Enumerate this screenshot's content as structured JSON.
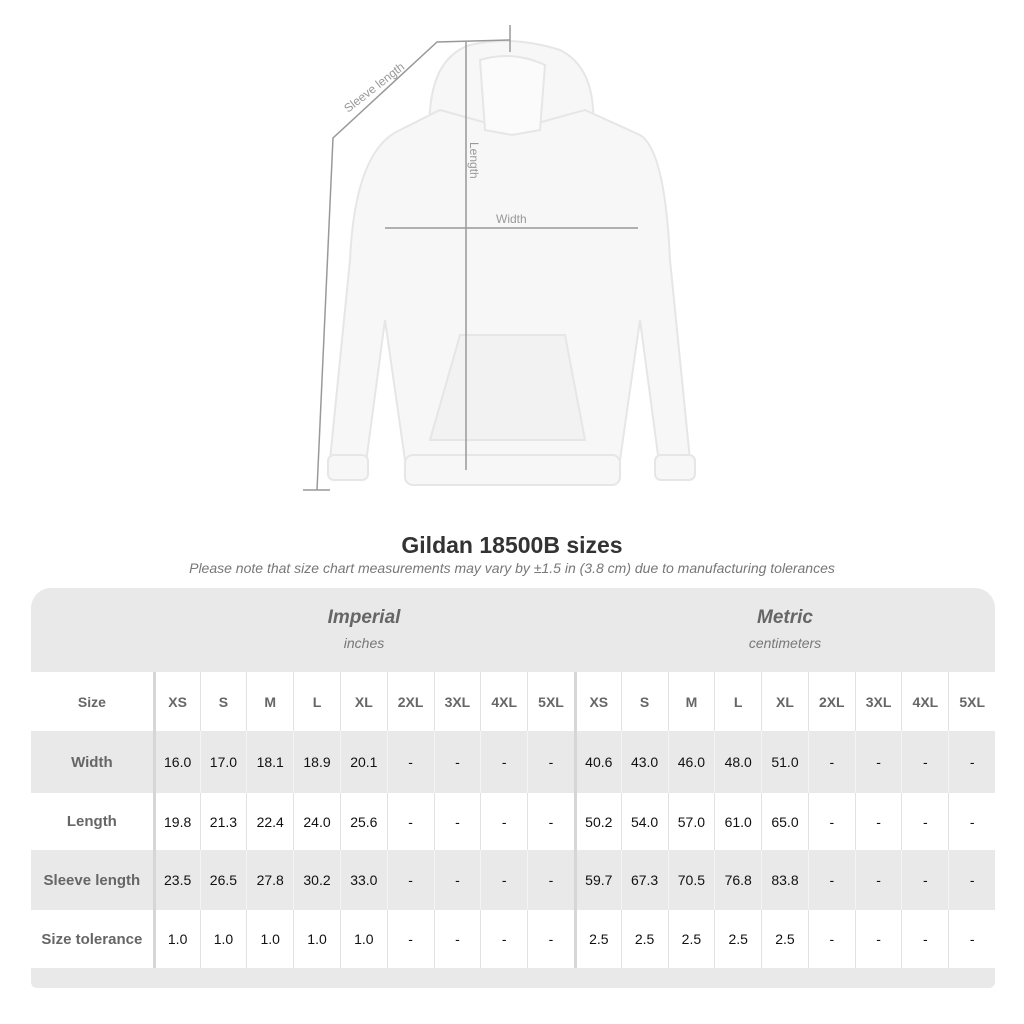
{
  "diagram": {
    "sleeve_label": "Sleeve length",
    "length_label": "Length",
    "width_label": "Width"
  },
  "title": "Gildan 18500B sizes",
  "note": "Please note that size chart measurements may vary by ±1.5 in (3.8 cm) due to manufacturing tolerances",
  "groups": {
    "imperial": {
      "title": "Imperial",
      "unit": "inches"
    },
    "metric": {
      "title": "Metric",
      "unit": "centimeters"
    }
  },
  "table": {
    "size_label": "Size",
    "sizes": [
      "XS",
      "S",
      "M",
      "L",
      "XL",
      "2XL",
      "3XL",
      "4XL",
      "5XL"
    ],
    "rows": [
      {
        "label": "Width",
        "imperial": [
          "16.0",
          "17.0",
          "18.1",
          "18.9",
          "20.1",
          "-",
          "-",
          "-",
          "-"
        ],
        "metric": [
          "40.6",
          "43.0",
          "46.0",
          "48.0",
          "51.0",
          "-",
          "-",
          "-",
          "-"
        ]
      },
      {
        "label": "Length",
        "imperial": [
          "19.8",
          "21.3",
          "22.4",
          "24.0",
          "25.6",
          "-",
          "-",
          "-",
          "-"
        ],
        "metric": [
          "50.2",
          "54.0",
          "57.0",
          "61.0",
          "65.0",
          "-",
          "-",
          "-",
          "-"
        ]
      },
      {
        "label": "Sleeve length",
        "imperial": [
          "23.5",
          "26.5",
          "27.8",
          "30.2",
          "33.0",
          "-",
          "-",
          "-",
          "-"
        ],
        "metric": [
          "59.7",
          "67.3",
          "70.5",
          "76.8",
          "83.8",
          "-",
          "-",
          "-",
          "-"
        ]
      },
      {
        "label": "Size tolerance",
        "imperial": [
          "1.0",
          "1.0",
          "1.0",
          "1.0",
          "1.0",
          "-",
          "-",
          "-",
          "-"
        ],
        "metric": [
          "2.5",
          "2.5",
          "2.5",
          "2.5",
          "2.5",
          "-",
          "-",
          "-",
          "-"
        ]
      }
    ]
  },
  "colors": {
    "header_bg": "#e9e9e9",
    "label_text": "#666666",
    "measure_line": "#999999"
  }
}
